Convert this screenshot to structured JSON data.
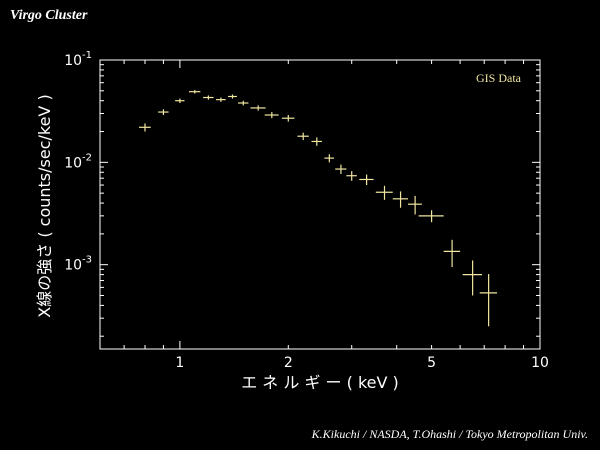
{
  "header": {
    "title": "Virgo Cluster"
  },
  "footer": {
    "credit": "K.Kikuchi / NASDA,   T.Ohashi / Tokyo Metropolitan Univ."
  },
  "chart_data": {
    "type": "scatter",
    "style": "error-bars",
    "title": "Virgo Cluster",
    "xlabel": "エ ネ ル ギ ー ( keV )",
    "ylabel": "X線の強さ ( counts/sec/keV )",
    "xscale": "log",
    "yscale": "log",
    "xlim": [
      0.6,
      10
    ],
    "ylim": [
      0.00015,
      0.1
    ],
    "x_tick_labels": [
      "1",
      "2",
      "5",
      "10"
    ],
    "y_tick_labels": [
      {
        "base": "10",
        "exp": "-1"
      },
      {
        "base": "10",
        "exp": "-2"
      },
      {
        "base": "10",
        "exp": "-3"
      }
    ],
    "series_color": "#f0e6a0",
    "legend": {
      "label": "GIS Data",
      "placement": "top-right"
    },
    "series": [
      {
        "name": "GIS Data",
        "points": [
          {
            "x": 0.8,
            "y": 0.022,
            "xerr": 0.03,
            "yerr": 0.002
          },
          {
            "x": 0.9,
            "y": 0.031,
            "xerr": 0.03,
            "yerr": 0.002
          },
          {
            "x": 1.0,
            "y": 0.04,
            "xerr": 0.03,
            "yerr": 0.002
          },
          {
            "x": 1.1,
            "y": 0.049,
            "xerr": 0.04,
            "yerr": 0.002
          },
          {
            "x": 1.2,
            "y": 0.043,
            "xerr": 0.04,
            "yerr": 0.002
          },
          {
            "x": 1.3,
            "y": 0.041,
            "xerr": 0.04,
            "yerr": 0.002
          },
          {
            "x": 1.4,
            "y": 0.044,
            "xerr": 0.04,
            "yerr": 0.002
          },
          {
            "x": 1.5,
            "y": 0.038,
            "xerr": 0.05,
            "yerr": 0.002
          },
          {
            "x": 1.65,
            "y": 0.034,
            "xerr": 0.08,
            "yerr": 0.002
          },
          {
            "x": 1.8,
            "y": 0.029,
            "xerr": 0.08,
            "yerr": 0.002
          },
          {
            "x": 2.0,
            "y": 0.027,
            "xerr": 0.08,
            "yerr": 0.002
          },
          {
            "x": 2.2,
            "y": 0.018,
            "xerr": 0.08,
            "yerr": 0.0015
          },
          {
            "x": 2.4,
            "y": 0.016,
            "xerr": 0.08,
            "yerr": 0.0015
          },
          {
            "x": 2.6,
            "y": 0.011,
            "xerr": 0.08,
            "yerr": 0.001
          },
          {
            "x": 2.8,
            "y": 0.0086,
            "xerr": 0.1,
            "yerr": 0.0009
          },
          {
            "x": 3.0,
            "y": 0.0074,
            "xerr": 0.1,
            "yerr": 0.0008
          },
          {
            "x": 3.3,
            "y": 0.0068,
            "xerr": 0.15,
            "yerr": 0.0008
          },
          {
            "x": 3.7,
            "y": 0.0051,
            "xerr": 0.2,
            "yerr": 0.0008
          },
          {
            "x": 4.1,
            "y": 0.0044,
            "xerr": 0.2,
            "yerr": 0.0008
          },
          {
            "x": 4.5,
            "y": 0.0039,
            "xerr": 0.2,
            "yerr": 0.0008
          },
          {
            "x": 5.0,
            "y": 0.003,
            "xerr": 0.4,
            "yerr": 0.0004
          },
          {
            "x": 5.7,
            "y": 0.00135,
            "xerr": 0.3,
            "yerr": 0.0004
          },
          {
            "x": 6.5,
            "y": 0.0008,
            "xerr": 0.4,
            "yerr": 0.0003
          },
          {
            "x": 7.2,
            "y": 0.00053,
            "xerr": 0.4,
            "yerr": 0.00028
          }
        ]
      }
    ]
  }
}
